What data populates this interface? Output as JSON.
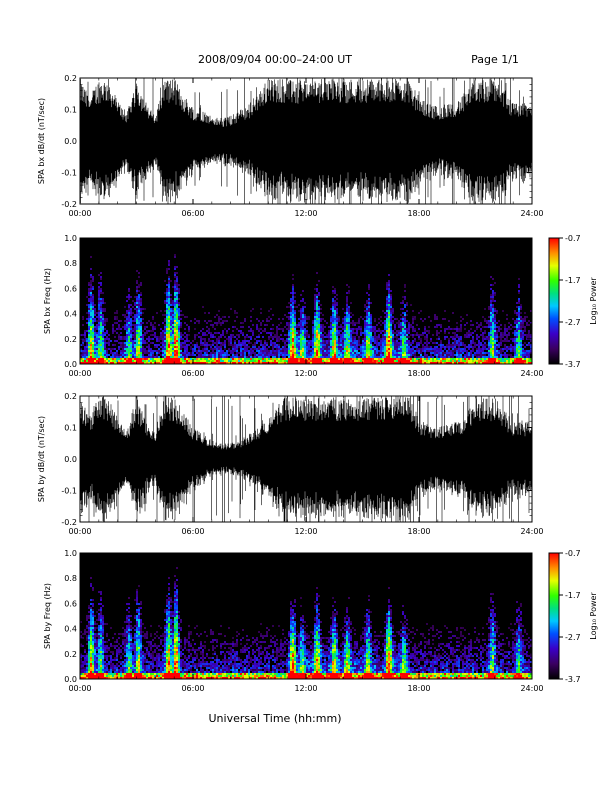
{
  "header": {
    "title": "2008/09/04  00:00–24:00 UT",
    "page": "Page 1/1"
  },
  "colorbar": {
    "title": "Log₁₀ Power",
    "ticks": [
      "-0.7",
      "-1.7",
      "-2.7",
      "-3.7"
    ],
    "range": [
      -3.7,
      -0.7
    ]
  },
  "time_ticks": [
    "00:00",
    "06:00",
    "12:00",
    "18:00",
    "24:00"
  ],
  "xlabel": "Universal Time (hh:mm)",
  "chart_data": [
    {
      "type": "line",
      "name": "bx-waveform",
      "ylabel": "SPA bx dB/dt (nT/sec)",
      "yticks": [
        "0.2",
        "0.1",
        "0.0",
        "-0.1",
        "-0.2"
      ],
      "xlim": [
        0,
        24
      ],
      "ylim": [
        -0.2,
        0.2
      ],
      "envelope_hours": [
        0,
        0.5,
        1,
        1.5,
        2,
        2.5,
        3,
        3.5,
        4,
        4.5,
        5,
        5.5,
        6,
        6.5,
        7,
        7.5,
        8,
        8.5,
        9,
        9.5,
        10,
        10.5,
        11,
        11.5,
        12,
        12.5,
        13,
        13.5,
        14,
        14.5,
        15,
        15.5,
        16,
        16.5,
        17,
        17.5,
        18,
        18.5,
        19,
        19.5,
        20,
        20.5,
        21,
        21.5,
        22,
        22.5,
        23,
        23.5,
        24
      ],
      "envelope_amplitude": [
        0.2,
        0.14,
        0.2,
        0.2,
        0.13,
        0.09,
        0.2,
        0.12,
        0.08,
        0.2,
        0.2,
        0.15,
        0.11,
        0.1,
        0.08,
        0.07,
        0.08,
        0.1,
        0.12,
        0.16,
        0.2,
        0.2,
        0.2,
        0.18,
        0.2,
        0.2,
        0.2,
        0.2,
        0.2,
        0.2,
        0.2,
        0.2,
        0.2,
        0.2,
        0.2,
        0.2,
        0.14,
        0.12,
        0.11,
        0.12,
        0.13,
        0.15,
        0.2,
        0.2,
        0.2,
        0.17,
        0.12,
        0.12,
        0.12
      ]
    },
    {
      "type": "heatmap",
      "name": "bx-spectrogram",
      "ylabel": "SPA bx Freq (Hz)",
      "yticks": [
        "1.0",
        "0.8",
        "0.6",
        "0.4",
        "0.2",
        "0.0"
      ],
      "xlim": [
        0,
        24
      ],
      "ylim": [
        0,
        1
      ],
      "zlim": [
        -3.7,
        -0.7
      ],
      "burst_hours": [
        0.6,
        1.1,
        2.6,
        3.1,
        4.7,
        5.1,
        11.3,
        11.8,
        12.6,
        13.5,
        14.2,
        15.3,
        16.4,
        17.2,
        21.9,
        23.3
      ],
      "burst_strength": [
        0.8,
        0.6,
        0.5,
        0.7,
        0.9,
        1.0,
        0.85,
        0.5,
        0.8,
        0.7,
        0.6,
        0.6,
        0.9,
        0.5,
        0.6,
        0.5
      ]
    },
    {
      "type": "line",
      "name": "by-waveform",
      "ylabel": "SPA by dB/dt (nT/sec)",
      "yticks": [
        "0.2",
        "0.1",
        "0.0",
        "-0.1",
        "-0.2"
      ],
      "xlim": [
        0,
        24
      ],
      "ylim": [
        -0.2,
        0.2
      ],
      "envelope_hours": [
        0,
        0.5,
        1,
        1.5,
        2,
        2.5,
        3,
        3.5,
        4,
        4.5,
        5,
        5.5,
        6,
        6.5,
        7,
        7.5,
        8,
        8.5,
        9,
        9.5,
        10,
        10.5,
        11,
        11.5,
        12,
        12.5,
        13,
        13.5,
        14,
        14.5,
        15,
        15.5,
        16,
        16.5,
        17,
        17.5,
        18,
        18.5,
        19,
        19.5,
        20,
        20.5,
        21,
        21.5,
        22,
        22.5,
        23,
        23.5,
        24
      ],
      "envelope_amplitude": [
        0.2,
        0.14,
        0.2,
        0.2,
        0.13,
        0.09,
        0.2,
        0.12,
        0.08,
        0.2,
        0.2,
        0.15,
        0.1,
        0.08,
        0.06,
        0.05,
        0.05,
        0.06,
        0.08,
        0.1,
        0.13,
        0.18,
        0.2,
        0.2,
        0.2,
        0.2,
        0.2,
        0.2,
        0.2,
        0.2,
        0.2,
        0.2,
        0.2,
        0.2,
        0.2,
        0.2,
        0.13,
        0.11,
        0.1,
        0.11,
        0.12,
        0.14,
        0.2,
        0.2,
        0.2,
        0.16,
        0.12,
        0.12,
        0.12
      ]
    },
    {
      "type": "heatmap",
      "name": "by-spectrogram",
      "ylabel": "SPA by Freq (Hz)",
      "yticks": [
        "1.0",
        "0.8",
        "0.6",
        "0.4",
        "0.2",
        "0.0"
      ],
      "xlim": [
        0,
        24
      ],
      "ylim": [
        0,
        1
      ],
      "zlim": [
        -3.7,
        -0.7
      ],
      "burst_hours": [
        0.6,
        1.1,
        2.6,
        3.1,
        4.7,
        5.1,
        11.3,
        11.8,
        12.6,
        13.5,
        14.2,
        15.3,
        16.4,
        17.2,
        21.9,
        23.3
      ],
      "burst_strength": [
        0.8,
        0.6,
        0.5,
        0.7,
        0.9,
        1.0,
        0.85,
        0.5,
        0.8,
        0.7,
        0.6,
        0.6,
        0.9,
        0.5,
        0.6,
        0.5
      ]
    }
  ]
}
